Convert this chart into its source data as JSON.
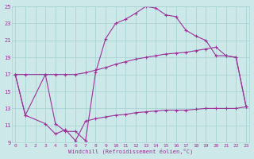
{
  "xlabel": "Windchill (Refroidissement éolien,°C)",
  "bg_color": "#cce8e8",
  "grid_color": "#aad4d4",
  "line_color": "#993399",
  "xmin": 0,
  "xmax": 23,
  "ymin": 9,
  "ymax": 25,
  "yticks": [
    9,
    11,
    13,
    15,
    17,
    19,
    21,
    23,
    25
  ],
  "xticks": [
    0,
    1,
    2,
    3,
    4,
    5,
    6,
    7,
    8,
    9,
    10,
    11,
    12,
    13,
    14,
    15,
    16,
    17,
    18,
    19,
    20,
    21,
    22,
    23
  ],
  "series1_x": [
    0,
    1,
    3,
    4,
    5,
    6,
    7,
    8,
    9,
    10,
    11,
    12,
    13,
    14,
    15,
    16,
    17,
    18,
    19,
    20,
    21,
    22,
    23
  ],
  "series1_y": [
    17.0,
    12.2,
    17.0,
    11.2,
    10.3,
    10.3,
    9.2,
    17.2,
    21.2,
    23.0,
    23.5,
    24.2,
    25.0,
    24.8,
    24.0,
    23.8,
    22.2,
    21.5,
    21.0,
    19.2,
    19.2,
    19.0,
    13.2
  ],
  "series2_x": [
    0,
    1,
    3,
    4,
    5,
    6,
    7,
    8,
    9,
    10,
    11,
    12,
    13,
    14,
    15,
    16,
    17,
    18,
    19,
    20,
    21,
    22,
    23
  ],
  "series2_y": [
    17.0,
    17.0,
    17.0,
    17.0,
    17.0,
    17.0,
    17.2,
    17.5,
    17.8,
    18.2,
    18.5,
    18.8,
    19.0,
    19.2,
    19.4,
    19.5,
    19.6,
    19.8,
    20.0,
    20.2,
    19.2,
    19.0,
    13.2
  ],
  "series3_x": [
    0,
    1,
    3,
    4,
    5,
    6,
    7,
    8,
    9,
    10,
    11,
    12,
    13,
    14,
    15,
    16,
    17,
    18,
    19,
    20,
    21,
    22,
    23
  ],
  "series3_y": [
    17.0,
    12.2,
    11.2,
    10.0,
    10.5,
    9.2,
    11.5,
    11.8,
    12.0,
    12.2,
    12.3,
    12.5,
    12.6,
    12.7,
    12.8,
    12.8,
    12.8,
    12.9,
    13.0,
    13.0,
    13.0,
    13.0,
    13.2
  ]
}
